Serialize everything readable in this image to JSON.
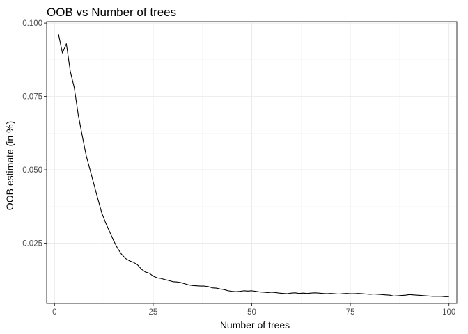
{
  "chart_data": {
    "type": "line",
    "title": "OOB vs Number of trees",
    "xlabel": "Number of trees",
    "ylabel": "OOB estimate (in %)",
    "xlim": [
      -2,
      102
    ],
    "ylim": [
      0.0045,
      0.1005
    ],
    "xticks": [
      0,
      25,
      50,
      75,
      100
    ],
    "xtick_labels": [
      "0",
      "25",
      "50",
      "75",
      "100"
    ],
    "yticks": [
      0.025,
      0.05,
      0.075,
      0.1
    ],
    "ytick_labels": [
      "0.025",
      "0.050",
      "0.075",
      "0.100"
    ],
    "grid": true,
    "legend": "none",
    "series": [
      {
        "x": [
          1,
          2,
          3,
          4,
          5,
          6,
          7,
          8,
          9,
          10,
          11,
          12,
          13,
          14,
          15,
          16,
          17,
          18,
          19,
          20,
          21,
          22,
          23,
          24,
          25,
          26,
          27,
          28,
          29,
          30,
          31,
          32,
          33,
          34,
          35,
          36,
          37,
          38,
          39,
          40,
          41,
          42,
          43,
          44,
          45,
          46,
          47,
          48,
          49,
          50,
          51,
          52,
          53,
          54,
          55,
          56,
          57,
          58,
          59,
          60,
          61,
          62,
          63,
          64,
          65,
          66,
          67,
          68,
          69,
          70,
          71,
          72,
          73,
          74,
          75,
          76,
          77,
          78,
          79,
          80,
          81,
          82,
          83,
          84,
          85,
          86,
          87,
          88,
          89,
          90,
          91,
          92,
          93,
          94,
          95,
          96,
          97,
          98,
          99,
          100
        ],
        "y": [
          0.0962,
          0.0898,
          0.093,
          0.0835,
          0.078,
          0.0688,
          0.0618,
          0.055,
          0.05,
          0.045,
          0.04,
          0.0352,
          0.0318,
          0.0288,
          0.0258,
          0.0232,
          0.0212,
          0.0198,
          0.019,
          0.0185,
          0.0177,
          0.0162,
          0.0152,
          0.0148,
          0.0138,
          0.0132,
          0.013,
          0.0126,
          0.0123,
          0.0119,
          0.0118,
          0.0116,
          0.0112,
          0.0108,
          0.0106,
          0.0105,
          0.0104,
          0.0104,
          0.0102,
          0.0098,
          0.0097,
          0.0094,
          0.0092,
          0.0088,
          0.0086,
          0.0085,
          0.0086,
          0.0088,
          0.0087,
          0.0088,
          0.0086,
          0.0084,
          0.0083,
          0.0082,
          0.0083,
          0.0082,
          0.008,
          0.0079,
          0.0078,
          0.008,
          0.0081,
          0.0079,
          0.008,
          0.0079,
          0.008,
          0.0081,
          0.008,
          0.0079,
          0.0078,
          0.0079,
          0.0078,
          0.0077,
          0.0078,
          0.0079,
          0.0078,
          0.0078,
          0.0079,
          0.0078,
          0.0077,
          0.0076,
          0.0077,
          0.0076,
          0.0075,
          0.0074,
          0.0073,
          0.007,
          0.0071,
          0.0072,
          0.0073,
          0.0075,
          0.0074,
          0.0073,
          0.0072,
          0.0071,
          0.007,
          0.0069,
          0.0069,
          0.0069,
          0.0068,
          0.0068
        ],
        "color": "#000000"
      }
    ]
  }
}
